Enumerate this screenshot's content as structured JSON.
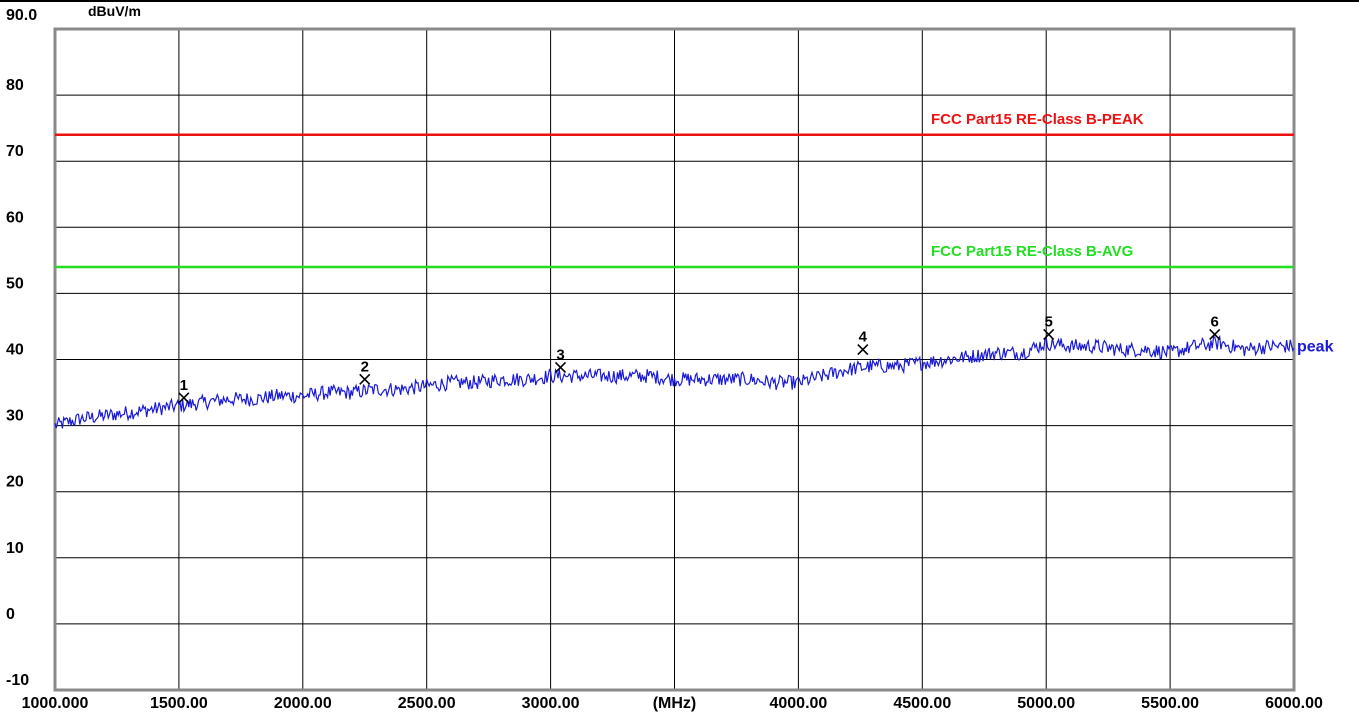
{
  "chart_data": {
    "type": "line",
    "y_unit": "dBuV/m",
    "x_unit": "(MHz)",
    "ylim": [
      -10,
      90
    ],
    "xlim": [
      1000,
      6000
    ],
    "y_ticks": [
      {
        "value": 90,
        "label": "90.0"
      },
      {
        "value": 80,
        "label": "80"
      },
      {
        "value": 70,
        "label": "70"
      },
      {
        "value": 60,
        "label": "60"
      },
      {
        "value": 50,
        "label": "50"
      },
      {
        "value": 40,
        "label": "40"
      },
      {
        "value": 30,
        "label": "30"
      },
      {
        "value": 20,
        "label": "20"
      },
      {
        "value": 10,
        "label": "10"
      },
      {
        "value": 0,
        "label": "0"
      },
      {
        "value": -10,
        "label": "-10"
      }
    ],
    "x_ticks": [
      {
        "value": 1000,
        "label": "1000.000"
      },
      {
        "value": 1500,
        "label": "1500.00"
      },
      {
        "value": 2000,
        "label": "2000.00"
      },
      {
        "value": 2500,
        "label": "2500.00"
      },
      {
        "value": 3000,
        "label": "3000.00"
      },
      {
        "value": 3500,
        "label": "(MHz)"
      },
      {
        "value": 4000,
        "label": "4000.00"
      },
      {
        "value": 4500,
        "label": "4500.00"
      },
      {
        "value": 5000,
        "label": "5000.00"
      },
      {
        "value": 5500,
        "label": "5500.00"
      },
      {
        "value": 6000,
        "label": "6000.00"
      }
    ],
    "grid": true,
    "limit_lines": [
      {
        "name": "FCC Part15 RE-Class B-PEAK",
        "value": 74,
        "color": "#ee1111"
      },
      {
        "name": "FCC Part15 RE-Class B-AVG",
        "value": 54,
        "color": "#22dd22"
      }
    ],
    "series": [
      {
        "name": "peak",
        "color": "#1a1ad6",
        "x": [
          1000,
          1100,
          1200,
          1300,
          1400,
          1500,
          1600,
          1700,
          1800,
          1900,
          2000,
          2100,
          2200,
          2300,
          2400,
          2500,
          2600,
          2700,
          2800,
          2900,
          3000,
          3100,
          3200,
          3300,
          3400,
          3500,
          3600,
          3700,
          3800,
          3900,
          4000,
          4100,
          4200,
          4300,
          4400,
          4500,
          4600,
          4700,
          4800,
          4900,
          5000,
          5100,
          5200,
          5300,
          5400,
          5500,
          5600,
          5700,
          5800,
          5900,
          6000
        ],
        "y": [
          30,
          31,
          31.5,
          32,
          32.5,
          33,
          33.5,
          34,
          34,
          34.5,
          34.5,
          35,
          35,
          35.5,
          35.5,
          36,
          36.5,
          36.5,
          37,
          37,
          37.5,
          37.5,
          37.5,
          37.5,
          37.5,
          37,
          37,
          37,
          37,
          36.5,
          36.5,
          37.5,
          38.5,
          39,
          39,
          39.5,
          40,
          40.5,
          41,
          41,
          42.5,
          42,
          42,
          41.5,
          41.5,
          41,
          42,
          42.5,
          41.5,
          42,
          42
        ]
      }
    ],
    "markers": [
      {
        "label": "1",
        "x": 1520,
        "y": 34.2
      },
      {
        "label": "2",
        "x": 2250,
        "y": 37
      },
      {
        "label": "3",
        "x": 3040,
        "y": 38.8
      },
      {
        "label": "4",
        "x": 4260,
        "y": 41.5
      },
      {
        "label": "5",
        "x": 5010,
        "y": 43.8
      },
      {
        "label": "6",
        "x": 5680,
        "y": 43.8
      }
    ]
  }
}
